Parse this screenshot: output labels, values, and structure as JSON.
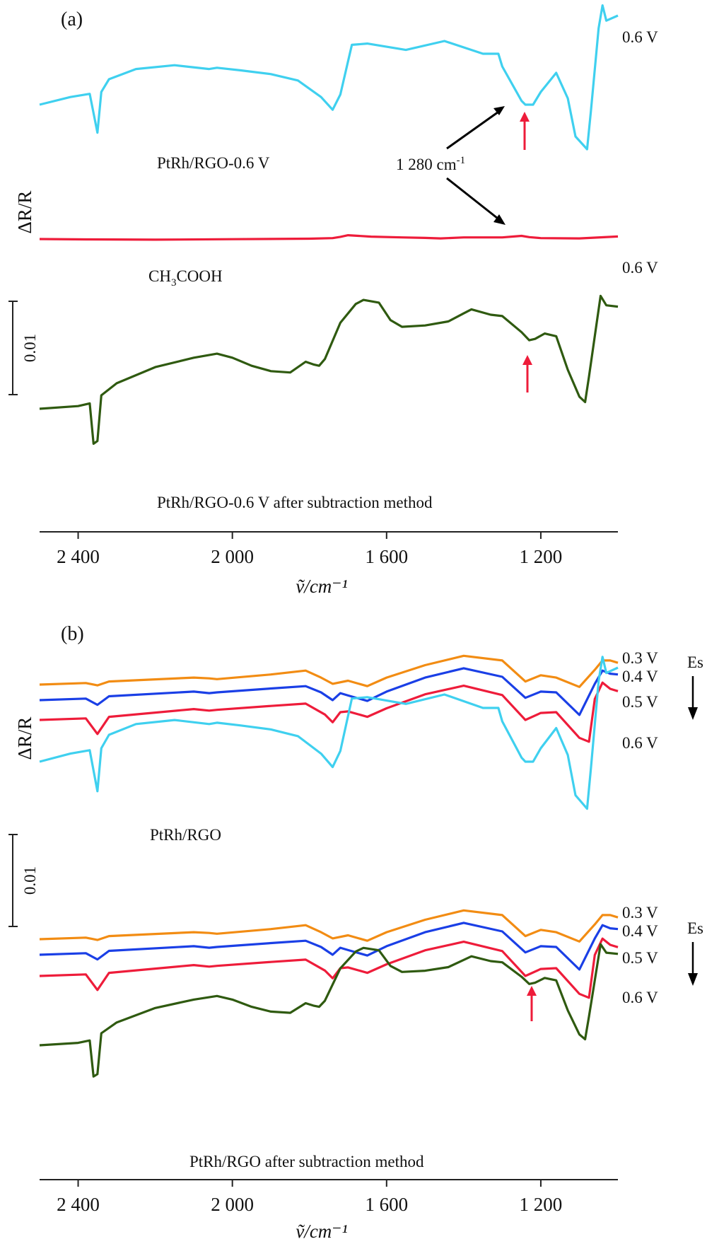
{
  "chart_data": [
    {
      "type": "line",
      "panel_label": "(a)",
      "y_axis_label": "ΔR/R",
      "x_axis_label": "ṽ/cm⁻¹",
      "x_ticks": [
        "2 400",
        "2 000",
        "1 600",
        "1 200"
      ],
      "x_tick_values": [
        2400,
        2000,
        1600,
        1200
      ],
      "xlim": [
        2500,
        1000
      ],
      "scale_bar_label": "0.01",
      "scale_bar_value": 0.01,
      "grid": false,
      "annotations": {
        "sample_label": "PtRh/RGO-0.6 V",
        "reference_label": "CH3COOH",
        "reference_label_main": "CH",
        "reference_label_sub": "3",
        "reference_label_tail": "COOH",
        "peak_label": "1 280 cm⁻¹",
        "peak_label_main": "1 280 cm",
        "peak_label_sup": "-1",
        "peak_wavenumber": 1280,
        "subtracted_label": "PtRh/RGO-0.6 V after subtraction method"
      },
      "series": [
        {
          "name": "0.6 V",
          "color": "#3fd0ef",
          "x": [
            2500,
            2420,
            2370,
            2350,
            2340,
            2320,
            2250,
            2150,
            2060,
            2040,
            1980,
            1900,
            1830,
            1770,
            1740,
            1720,
            1690,
            1650,
            1550,
            1450,
            1350,
            1310,
            1300,
            1250,
            1240,
            1220,
            1200,
            1160,
            1130,
            1110,
            1080,
            1070,
            1050,
            1040,
            1030,
            1000
          ],
          "y": [
            0.0,
            0.006,
            0.0085,
            -0.022,
            0.01,
            0.02,
            0.028,
            0.031,
            0.028,
            0.029,
            0.027,
            0.024,
            0.019,
            0.006,
            -0.004,
            0.008,
            0.047,
            0.048,
            0.043,
            0.05,
            0.04,
            0.04,
            0.03,
            0.003,
            0.0,
            0.0,
            0.01,
            0.025,
            0.005,
            -0.025,
            -0.035,
            -0.005,
            0.06,
            0.078,
            0.066,
            0.07
          ]
        },
        {
          "name": "CH3COOH",
          "color": "#ee1c3a",
          "x": [
            2500,
            2380,
            2200,
            2000,
            1800,
            1740,
            1720,
            1700,
            1640,
            1560,
            1500,
            1460,
            1400,
            1360,
            1300,
            1270,
            1250,
            1230,
            1200,
            1100,
            1000
          ],
          "y": [
            -0.0475,
            -0.0478,
            -0.048,
            -0.0476,
            -0.0472,
            -0.0468,
            -0.0458,
            -0.0445,
            -0.0456,
            -0.0462,
            -0.0466,
            -0.047,
            -0.0462,
            -0.0462,
            -0.0462,
            -0.0455,
            -0.045,
            -0.046,
            -0.0468,
            -0.047,
            -0.0455
          ]
        },
        {
          "name": "0.6 V",
          "color": "#2f5a10",
          "x": [
            2500,
            2400,
            2370,
            2360,
            2350,
            2340,
            2300,
            2200,
            2100,
            2040,
            2000,
            1950,
            1900,
            1850,
            1810,
            1790,
            1775,
            1760,
            1720,
            1680,
            1660,
            1620,
            1590,
            1560,
            1500,
            1440,
            1400,
            1380,
            1330,
            1300,
            1250,
            1230,
            1215,
            1190,
            1160,
            1130,
            1100,
            1085,
            1075,
            1055,
            1045,
            1030,
            1000
          ],
          "y": [
            -0.114,
            -0.112,
            -0.11,
            -0.14,
            -0.138,
            -0.104,
            -0.095,
            -0.083,
            -0.076,
            -0.073,
            -0.076,
            -0.082,
            -0.086,
            -0.087,
            -0.079,
            -0.081,
            -0.082,
            -0.077,
            -0.05,
            -0.036,
            -0.033,
            -0.035,
            -0.048,
            -0.053,
            -0.052,
            -0.049,
            -0.043,
            -0.04,
            -0.044,
            -0.045,
            -0.057,
            -0.063,
            -0.062,
            -0.058,
            -0.06,
            -0.085,
            -0.105,
            -0.109,
            -0.09,
            -0.05,
            -0.03,
            -0.037,
            -0.038
          ]
        }
      ],
      "series_labels": [
        "0.6 V",
        "0.6 V"
      ],
      "highlight_arrows_at": [
        1245,
        1230
      ]
    },
    {
      "type": "line",
      "panel_label": "(b)",
      "y_axis_label": "ΔR/R",
      "x_axis_label": "ṽ/cm⁻¹",
      "x_ticks": [
        "2 400",
        "2 000",
        "1 600",
        "1 200"
      ],
      "x_tick_values": [
        2400,
        2000,
        1600,
        1200
      ],
      "xlim": [
        2500,
        1000
      ],
      "scale_bar_label": "0.01",
      "scale_bar_value": 0.01,
      "grid": false,
      "direction_label": "Es",
      "annotations": {
        "upper_group_label": "PtRh/RGO",
        "lower_group_label": "PtRh/RGO after subtraction method"
      },
      "series": [
        {
          "name": "0.3 V",
          "group": "PtRh/RGO",
          "color": "#f28c13",
          "x": [
            2500,
            2380,
            2350,
            2320,
            2100,
            2060,
            2040,
            1900,
            1810,
            1770,
            1740,
            1700,
            1650,
            1600,
            1500,
            1400,
            1300,
            1240,
            1200,
            1160,
            1100,
            1060,
            1040,
            1020,
            1000
          ],
          "y": [
            0.069,
            0.071,
            0.068,
            0.073,
            0.078,
            0.077,
            0.076,
            0.082,
            0.087,
            0.078,
            0.07,
            0.074,
            0.067,
            0.078,
            0.094,
            0.106,
            0.1,
            0.073,
            0.081,
            0.078,
            0.066,
            0.088,
            0.1,
            0.1,
            0.097
          ]
        },
        {
          "name": "0.4 V",
          "group": "PtRh/RGO",
          "color": "#1a3fe6",
          "x": [
            2500,
            2380,
            2350,
            2320,
            2100,
            2060,
            2040,
            1900,
            1810,
            1770,
            1740,
            1720,
            1700,
            1650,
            1600,
            1500,
            1400,
            1300,
            1240,
            1200,
            1160,
            1100,
            1060,
            1040,
            1020,
            1000
          ],
          "y": [
            0.058,
            0.06,
            0.052,
            0.063,
            0.069,
            0.067,
            0.068,
            0.073,
            0.076,
            0.068,
            0.058,
            0.067,
            0.064,
            0.057,
            0.069,
            0.087,
            0.099,
            0.088,
            0.061,
            0.069,
            0.068,
            0.039,
            0.079,
            0.096,
            0.092,
            0.091
          ]
        },
        {
          "name": "0.5 V",
          "group": "PtRh/RGO",
          "color": "#ee1c3a",
          "x": [
            2500,
            2380,
            2350,
            2320,
            2100,
            2060,
            2040,
            1900,
            1810,
            1760,
            1740,
            1720,
            1700,
            1650,
            1600,
            1500,
            1400,
            1300,
            1240,
            1200,
            1160,
            1100,
            1075,
            1060,
            1040,
            1020,
            1000
          ],
          "y": [
            0.048,
            0.05,
            0.03,
            0.052,
            0.062,
            0.06,
            0.061,
            0.066,
            0.069,
            0.055,
            0.045,
            0.058,
            0.059,
            0.052,
            0.063,
            0.081,
            0.092,
            0.08,
            0.048,
            0.057,
            0.058,
            0.025,
            0.02,
            0.075,
            0.096,
            0.088,
            0.085
          ]
        },
        {
          "name": "0.6 V",
          "group": "PtRh/RGO",
          "color": "#3fd0ef",
          "x": [
            2500,
            2420,
            2370,
            2350,
            2340,
            2320,
            2250,
            2150,
            2060,
            2040,
            1980,
            1900,
            1830,
            1770,
            1740,
            1720,
            1690,
            1650,
            1550,
            1450,
            1350,
            1310,
            1300,
            1250,
            1240,
            1220,
            1200,
            1160,
            1130,
            1110,
            1080,
            1070,
            1050,
            1040,
            1030,
            1000
          ],
          "y": [
            0.0,
            0.006,
            0.0085,
            -0.022,
            0.01,
            0.02,
            0.028,
            0.031,
            0.028,
            0.029,
            0.027,
            0.024,
            0.019,
            0.006,
            -0.004,
            0.008,
            0.047,
            0.048,
            0.043,
            0.05,
            0.04,
            0.04,
            0.03,
            0.003,
            0.0,
            0.0,
            0.01,
            0.025,
            0.005,
            -0.025,
            -0.035,
            -0.005,
            0.06,
            0.078,
            0.066,
            0.07
          ]
        },
        {
          "name": "0.3 V",
          "group": "PtRh/RGO after subtraction method",
          "color": "#f28c13",
          "x": [
            2500,
            2380,
            2350,
            2320,
            2100,
            2060,
            2040,
            1900,
            1810,
            1770,
            1740,
            1700,
            1650,
            1600,
            1500,
            1400,
            1300,
            1240,
            1200,
            1160,
            1100,
            1060,
            1040,
            1020,
            1000
          ],
          "y": [
            0.069,
            0.071,
            0.068,
            0.073,
            0.078,
            0.077,
            0.076,
            0.082,
            0.087,
            0.078,
            0.07,
            0.074,
            0.067,
            0.078,
            0.094,
            0.106,
            0.1,
            0.073,
            0.081,
            0.078,
            0.066,
            0.088,
            0.1,
            0.1,
            0.097
          ]
        },
        {
          "name": "0.4 V",
          "group": "PtRh/RGO after subtraction method",
          "color": "#1a3fe6",
          "x": [
            2500,
            2380,
            2350,
            2320,
            2100,
            2060,
            2040,
            1900,
            1810,
            1770,
            1740,
            1720,
            1700,
            1650,
            1600,
            1500,
            1400,
            1300,
            1240,
            1200,
            1160,
            1100,
            1060,
            1040,
            1020,
            1000
          ],
          "y": [
            0.058,
            0.06,
            0.052,
            0.063,
            0.069,
            0.067,
            0.068,
            0.073,
            0.076,
            0.068,
            0.058,
            0.067,
            0.064,
            0.057,
            0.069,
            0.087,
            0.099,
            0.088,
            0.061,
            0.069,
            0.068,
            0.039,
            0.079,
            0.096,
            0.092,
            0.091
          ]
        },
        {
          "name": "0.5 V",
          "group": "PtRh/RGO after subtraction method",
          "color": "#ee1c3a",
          "x": [
            2500,
            2380,
            2350,
            2320,
            2100,
            2060,
            2040,
            1900,
            1810,
            1760,
            1740,
            1720,
            1700,
            1650,
            1600,
            1500,
            1400,
            1300,
            1240,
            1200,
            1160,
            1100,
            1075,
            1060,
            1040,
            1020,
            1000
          ],
          "y": [
            0.048,
            0.05,
            0.03,
            0.052,
            0.062,
            0.06,
            0.061,
            0.066,
            0.069,
            0.055,
            0.045,
            0.058,
            0.059,
            0.052,
            0.063,
            0.081,
            0.092,
            0.08,
            0.048,
            0.057,
            0.058,
            0.025,
            0.02,
            0.075,
            0.096,
            0.088,
            0.085
          ]
        },
        {
          "name": "0.6 V",
          "group": "PtRh/RGO after subtraction method",
          "color": "#2f5a10",
          "x": [
            2500,
            2400,
            2370,
            2360,
            2350,
            2340,
            2300,
            2200,
            2100,
            2040,
            2000,
            1950,
            1900,
            1850,
            1810,
            1790,
            1775,
            1760,
            1720,
            1680,
            1660,
            1620,
            1590,
            1560,
            1500,
            1440,
            1400,
            1380,
            1330,
            1300,
            1250,
            1230,
            1215,
            1190,
            1160,
            1130,
            1100,
            1085,
            1075,
            1055,
            1045,
            1030,
            1000
          ],
          "y": [
            -0.114,
            -0.112,
            -0.11,
            -0.14,
            -0.138,
            -0.104,
            -0.095,
            -0.083,
            -0.076,
            -0.073,
            -0.076,
            -0.082,
            -0.086,
            -0.087,
            -0.079,
            -0.081,
            -0.082,
            -0.077,
            -0.05,
            -0.036,
            -0.033,
            -0.035,
            -0.048,
            -0.053,
            -0.052,
            -0.049,
            -0.043,
            -0.04,
            -0.044,
            -0.045,
            -0.057,
            -0.063,
            -0.062,
            -0.058,
            -0.06,
            -0.085,
            -0.105,
            -0.109,
            -0.09,
            -0.05,
            -0.03,
            -0.037,
            -0.038
          ]
        }
      ],
      "series_labels": [
        "0.3 V",
        "0.4 V",
        "0.5 V",
        "0.6 V",
        "0.3 V",
        "0.4 V",
        "0.5 V",
        "0.6 V"
      ],
      "highlight_arrows_at": [
        1220
      ]
    }
  ]
}
